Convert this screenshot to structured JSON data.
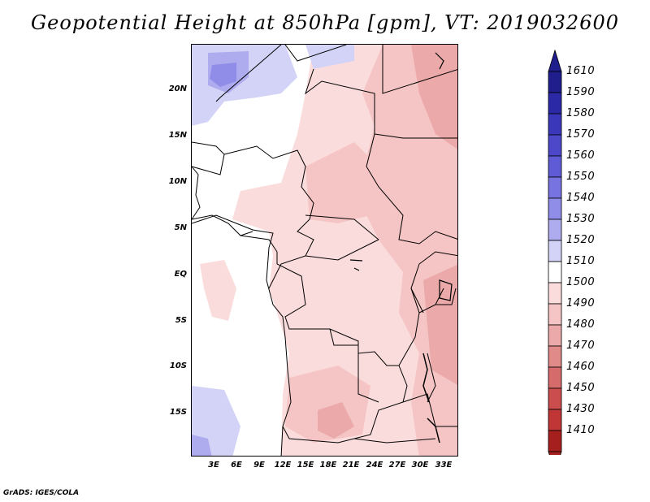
{
  "title": "Geopotential Height at 850hPa [gpm], VT: 2019032600",
  "lat_labels": [
    "20N",
    "15N",
    "10N",
    "5N",
    "EQ",
    "5S",
    "10S",
    "15S"
  ],
  "lon_labels": [
    "3E",
    "6E",
    "9E",
    "12E",
    "15E",
    "18E",
    "21E",
    "24E",
    "27E",
    "30E",
    "33E"
  ],
  "colorbar": {
    "labels": [
      "1610",
      "1590",
      "1580",
      "1570",
      "1560",
      "1550",
      "1540",
      "1530",
      "1520",
      "1510",
      "1500",
      "1490",
      "1480",
      "1470",
      "1460",
      "1450",
      "1430",
      "1410"
    ],
    "colors": [
      "#1f1e8c",
      "#2c29a6",
      "#3a37bb",
      "#4c48c9",
      "#5f5bd6",
      "#7773e0",
      "#908de8",
      "#aeacef",
      "#d3d3f7",
      "#ffffff",
      "#fbdcdc",
      "#f5c4c4",
      "#eba9a9",
      "#e18a8a",
      "#d66b6b",
      "#cc4d4d",
      "#c03636",
      "#a61f1f"
    ],
    "top_arrow_color": "#1f1e8c",
    "bottom_arrow_color": "#a61f1f"
  },
  "credit": "GrADS: IGES/COLA"
}
